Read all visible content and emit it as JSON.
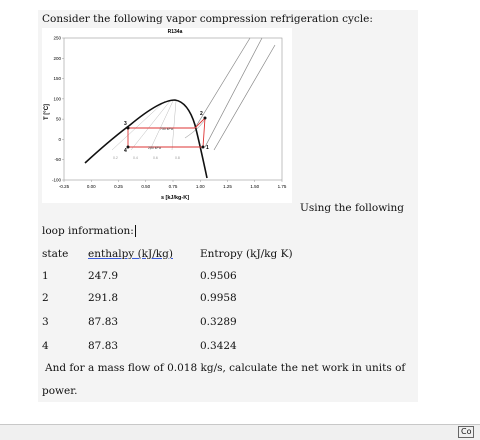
{
  "document": {
    "intro": "Consider the following vapor compression refrigeration cycle:",
    "figure": {
      "title": "R134a",
      "x_label": "s [kJ/kg-K]",
      "y_label": "T [°C]",
      "xticks": [
        "-0.25",
        "0.00",
        "0.25",
        "0.50",
        "0.75",
        "1.00",
        "1.25",
        "1.50",
        "1.75"
      ],
      "yticks": [
        "250",
        "200",
        "150",
        "100",
        "50",
        "0",
        "-50",
        "-100"
      ],
      "pressure_labels": [
        "750 kPa",
        "200 kPa"
      ],
      "point_labels": [
        "1",
        "2",
        "3",
        "4"
      ],
      "quality_labels": [
        "0.2",
        "0.4",
        "0.6",
        "0.8"
      ]
    },
    "text_after_figure": "Using the following",
    "text_line2": "loop information:",
    "table": {
      "header": [
        "state",
        "enthalpy (kJ/kg)",
        "Entropy (kJ/kg K)"
      ],
      "rows": [
        [
          "1",
          "247.9",
          "0.9506"
        ],
        [
          "2",
          "291.8",
          "0.9958"
        ],
        [
          "3",
          "87.83",
          "0.3289"
        ],
        [
          "4",
          "87.83",
          "0.3424"
        ]
      ]
    },
    "question_line1": "And for a mass flow of 0.018 kg/s, calculate the net work in units of",
    "question_line2": "power.",
    "taskbar_label": "Co"
  }
}
